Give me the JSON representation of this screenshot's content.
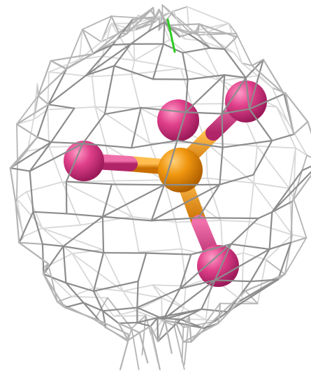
{
  "scene": {
    "background_color": "#ffffff",
    "mesh_color_light": "#d8d8d8",
    "mesh_color_mid": "#b4b4b4",
    "mesh_color_dark": "#8c8c8c",
    "central_atom_color": "#f0960f",
    "central_atom_shade": "#c96f00",
    "ligand_atom_color": "#e0408a",
    "ligand_atom_shade": "#b02468",
    "marker_line_color": "#2ecc22"
  }
}
